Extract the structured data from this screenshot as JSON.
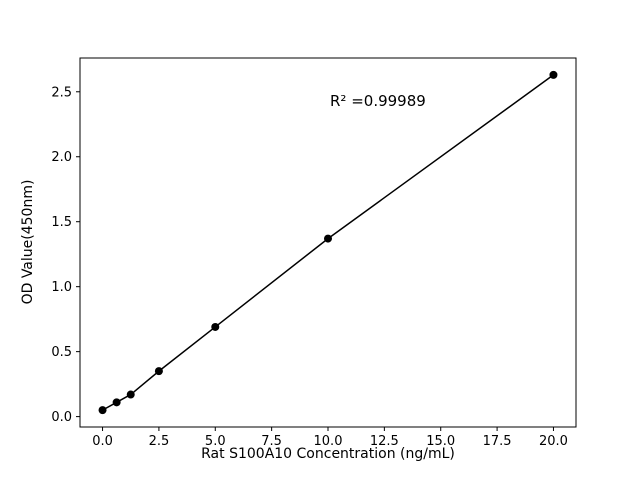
{
  "chart_data": {
    "type": "line",
    "x": [
      0,
      0.625,
      1.25,
      2.5,
      5,
      10,
      20
    ],
    "y": [
      0.05,
      0.11,
      0.17,
      0.35,
      0.69,
      1.37,
      2.63
    ],
    "title": "",
    "xlabel": "Rat S100A10 Concentration (ng/mL)",
    "ylabel": "OD Value(450nm)",
    "annotation": "R² =0.99989",
    "xlim": [
      -1,
      21
    ],
    "ylim": [
      -0.08,
      2.76
    ],
    "xticks": [
      "0.0",
      "2.5",
      "5.0",
      "7.5",
      "10.0",
      "12.5",
      "15.0",
      "17.5",
      "20.0"
    ],
    "yticks": [
      "0.0",
      "0.5",
      "1.0",
      "1.5",
      "2.0",
      "2.5"
    ],
    "grid": false,
    "legend_position": "none",
    "marker": "filled-circle",
    "marker_color": "#000000",
    "line_color": "#000000",
    "background_color": "#ffffff"
  }
}
